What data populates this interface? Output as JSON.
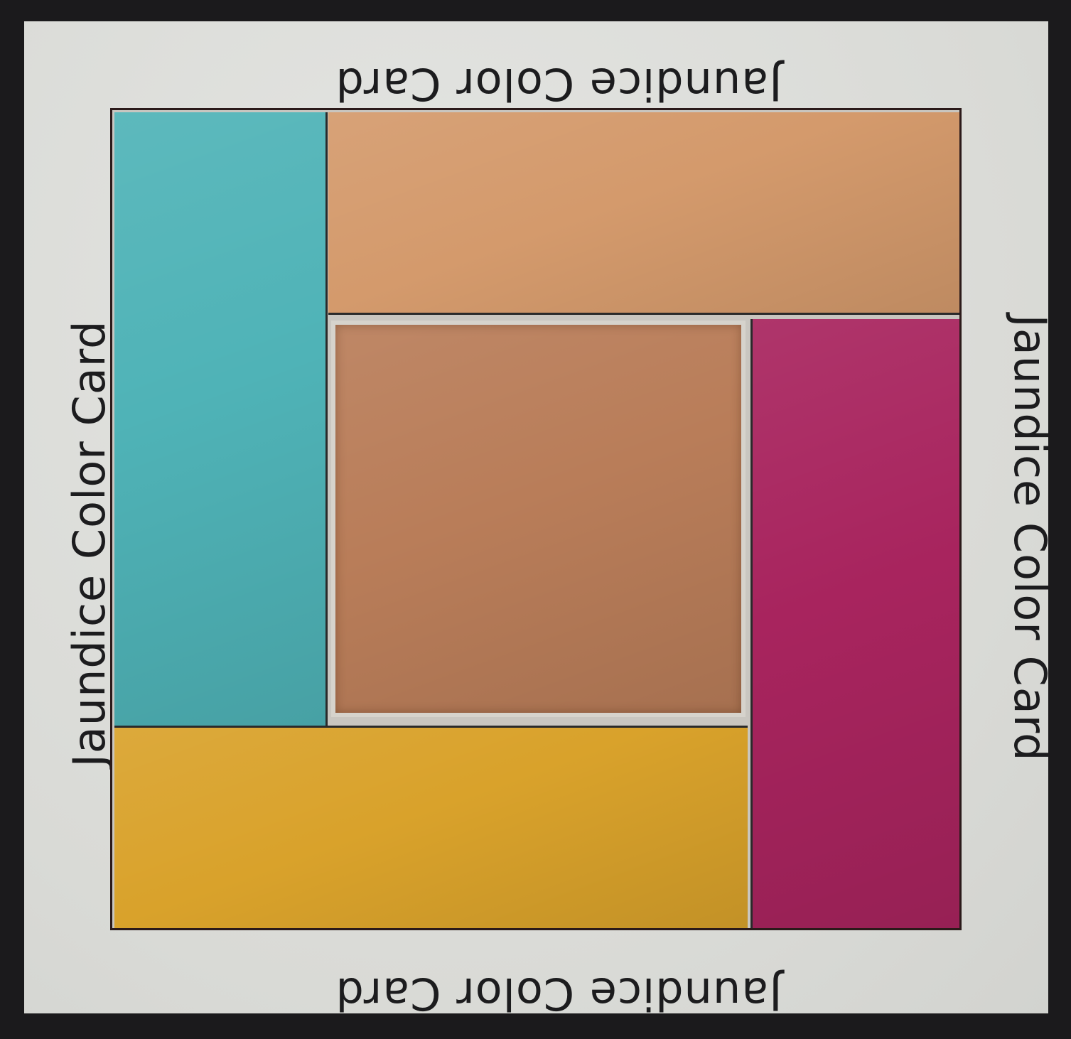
{
  "card": {
    "label_top": "Jaundice Color Card",
    "label_bottom": "Jaundice Color Card",
    "label_left": "Jaundice Color Card",
    "label_right": "Jaundice Color Card"
  },
  "colors": {
    "border": "#1b1a1c",
    "card_background": "#dddcd8",
    "text": "#1c1c1e",
    "cyan_swatch": "#4fb3b7",
    "peach_swatch": "#d49a6c",
    "magenta_swatch": "#a8245e",
    "yellow_swatch": "#d9a22b",
    "skin_window": "#b97d59"
  },
  "swatches": [
    {
      "name": "cyan",
      "color": "#4fb3b7"
    },
    {
      "name": "peach",
      "color": "#d49a6c"
    },
    {
      "name": "magenta",
      "color": "#a8245e"
    },
    {
      "name": "yellow",
      "color": "#d9a22b"
    }
  ]
}
